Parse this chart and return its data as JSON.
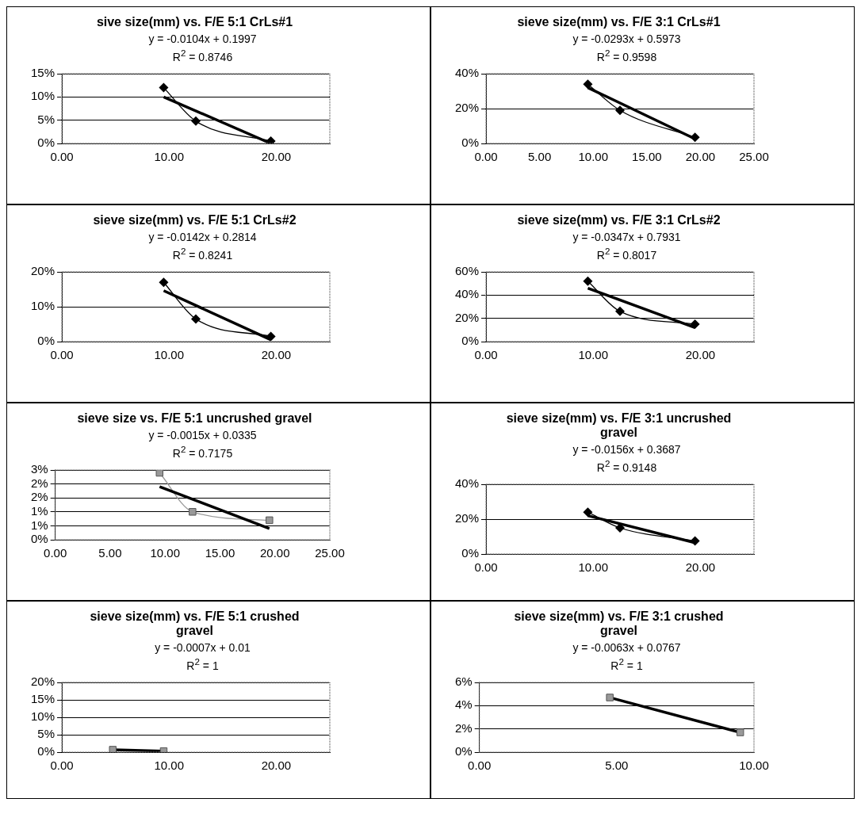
{
  "chart_data": [
    {
      "type": "line",
      "title": "sive size(mm)  vs. F/E 5:1 CrLs#1",
      "annotations": [
        "y = -0.0104x + 0.1997",
        "R$^{2}$ = 0.8746"
      ],
      "xlim": [
        0,
        25
      ],
      "xticks": [
        {
          "value": 0,
          "label": "0.00"
        },
        {
          "value": 10,
          "label": "10.00"
        },
        {
          "value": 20,
          "label": "20.00"
        }
      ],
      "ylim": [
        0,
        0.15
      ],
      "yticks": [
        {
          "value": 0,
          "label": "0%"
        },
        {
          "value": 0.05,
          "label": "5%"
        },
        {
          "value": 0.1,
          "label": "10%"
        },
        {
          "value": 0.15,
          "label": "15%"
        }
      ],
      "grid": "y",
      "legend": false,
      "series": [
        {
          "type": "line",
          "marker": "diamond",
          "color": "#000000",
          "x": [
            9.5,
            12.5,
            19.5
          ],
          "values": [
            0.12,
            0.048,
            0.005
          ]
        },
        {
          "type": "line",
          "marker": "none",
          "color": "#000000",
          "x": [
            9.5,
            19.5
          ],
          "values": [
            0.1,
            0.0
          ]
        }
      ]
    },
    {
      "type": "line",
      "title": "sieve size(mm)  vs. F/E 3:1 CrLs#1",
      "annotations": [
        "y = -0.0293x + 0.5973",
        "R$^{2}$ = 0.9598"
      ],
      "xlim": [
        0,
        25
      ],
      "xticks": [
        {
          "value": 0,
          "label": "0.00"
        },
        {
          "value": 5,
          "label": "5.00"
        },
        {
          "value": 10,
          "label": "10.00"
        },
        {
          "value": 15,
          "label": "15.00"
        },
        {
          "value": 20,
          "label": "20.00"
        },
        {
          "value": 25,
          "label": "25.00"
        }
      ],
      "ylim": [
        0,
        0.4
      ],
      "yticks": [
        {
          "value": 0,
          "label": "0%"
        },
        {
          "value": 0.2,
          "label": "20%"
        },
        {
          "value": 0.4,
          "label": "40%"
        }
      ],
      "grid": "y",
      "legend": false,
      "series": [
        {
          "type": "line",
          "marker": "diamond",
          "color": "#000000",
          "x": [
            9.5,
            12.5,
            19.5
          ],
          "values": [
            0.34,
            0.19,
            0.035
          ]
        },
        {
          "type": "line",
          "marker": "none",
          "color": "#000000",
          "x": [
            9.5,
            19.5
          ],
          "values": [
            0.32,
            0.026
          ]
        }
      ]
    },
    {
      "type": "line",
      "title": "sieve size(mm)  vs. F/E 5:1 CrLs#2",
      "annotations": [
        "y = -0.0142x + 0.2814",
        "R$^{2}$ = 0.8241"
      ],
      "xlim": [
        0,
        25
      ],
      "xticks": [
        {
          "value": 0,
          "label": "0.00"
        },
        {
          "value": 10,
          "label": "10.00"
        },
        {
          "value": 20,
          "label": "20.00"
        }
      ],
      "ylim": [
        0,
        0.2
      ],
      "yticks": [
        {
          "value": 0,
          "label": "0%"
        },
        {
          "value": 0.1,
          "label": "10%"
        },
        {
          "value": 0.2,
          "label": "20%"
        }
      ],
      "grid": "y",
      "legend": false,
      "series": [
        {
          "type": "line",
          "marker": "diamond",
          "color": "#000000",
          "x": [
            9.5,
            12.5,
            19.5
          ],
          "values": [
            0.17,
            0.065,
            0.015
          ]
        },
        {
          "type": "line",
          "marker": "none",
          "color": "#000000",
          "x": [
            9.5,
            19.5
          ],
          "values": [
            0.146,
            0.005
          ]
        }
      ]
    },
    {
      "type": "line",
      "title": "sieve size(mm) vs. F/E 3:1 CrLs#2",
      "annotations": [
        "y = -0.0347x + 0.7931",
        "R$^{2}$ = 0.8017"
      ],
      "xlim": [
        0,
        25
      ],
      "xticks": [
        {
          "value": 0,
          "label": "0.00"
        },
        {
          "value": 10,
          "label": "10.00"
        },
        {
          "value": 20,
          "label": "20.00"
        }
      ],
      "ylim": [
        0,
        0.6
      ],
      "yticks": [
        {
          "value": 0,
          "label": "0%"
        },
        {
          "value": 0.2,
          "label": "20%"
        },
        {
          "value": 0.4,
          "label": "40%"
        },
        {
          "value": 0.6,
          "label": "60%"
        }
      ],
      "grid": "y",
      "legend": false,
      "series": [
        {
          "type": "line",
          "marker": "diamond",
          "color": "#000000",
          "x": [
            9.5,
            12.5,
            19.5
          ],
          "values": [
            0.52,
            0.26,
            0.15
          ]
        },
        {
          "type": "line",
          "marker": "none",
          "color": "#000000",
          "x": [
            9.5,
            19.5
          ],
          "values": [
            0.46,
            0.12
          ]
        }
      ]
    },
    {
      "type": "line",
      "title": "sieve size vs. F/E 5:1 uncrushed gravel",
      "annotations": [
        "y = -0.0015x + 0.0335",
        "R$^{2}$ = 0.7175"
      ],
      "xlim": [
        0,
        25
      ],
      "xticks": [
        {
          "value": 0,
          "label": "0.00"
        },
        {
          "value": 5,
          "label": "5.00"
        },
        {
          "value": 10,
          "label": "10.00"
        },
        {
          "value": 15,
          "label": "15.00"
        },
        {
          "value": 20,
          "label": "20.00"
        },
        {
          "value": 25,
          "label": "25.00"
        }
      ],
      "ylim": [
        0,
        0.025
      ],
      "yticks": [
        {
          "value": 0,
          "label": "0%"
        },
        {
          "value": 0.005,
          "label": "1%"
        },
        {
          "value": 0.01,
          "label": "1%"
        },
        {
          "value": 0.015,
          "label": "2%"
        },
        {
          "value": 0.02,
          "label": "2%"
        },
        {
          "value": 0.025,
          "label": "3%"
        }
      ],
      "grid": "y",
      "legend": false,
      "series": [
        {
          "type": "line",
          "marker": "square",
          "color": "#999999",
          "x": [
            9.5,
            12.5,
            19.5
          ],
          "values": [
            0.024,
            0.01,
            0.007
          ]
        },
        {
          "type": "line",
          "marker": "none",
          "color": "#000000",
          "x": [
            9.5,
            19.5
          ],
          "values": [
            0.019,
            0.004
          ]
        }
      ]
    },
    {
      "type": "line",
      "title": "sieve size(mm)  vs. F/E 3:1 uncrushed gravel",
      "annotations": [
        "y = -0.0156x + 0.3687",
        "R$^{2}$ = 0.9148"
      ],
      "xlim": [
        0,
        25
      ],
      "xticks": [
        {
          "value": 0,
          "label": "0.00"
        },
        {
          "value": 10,
          "label": "10.00"
        },
        {
          "value": 20,
          "label": "20.00"
        }
      ],
      "ylim": [
        0,
        0.4
      ],
      "yticks": [
        {
          "value": 0,
          "label": "0%"
        },
        {
          "value": 0.2,
          "label": "20%"
        },
        {
          "value": 0.4,
          "label": "40%"
        }
      ],
      "grid": "y",
      "legend": false,
      "series": [
        {
          "type": "line",
          "marker": "diamond",
          "color": "#000000",
          "x": [
            9.5,
            12.5,
            19.5
          ],
          "values": [
            0.24,
            0.15,
            0.075
          ]
        },
        {
          "type": "line",
          "marker": "none",
          "color": "#000000",
          "x": [
            9.5,
            19.5
          ],
          "values": [
            0.22,
            0.065
          ]
        }
      ]
    },
    {
      "type": "line",
      "title": "sieve size(mm)  vs. F/E 5:1 crushed gravel",
      "annotations": [
        "y = -0.0007x + 0.01",
        "R$^{2}$ = 1"
      ],
      "xlim": [
        0,
        25
      ],
      "xticks": [
        {
          "value": 0,
          "label": "0.00"
        },
        {
          "value": 10,
          "label": "10.00"
        },
        {
          "value": 20,
          "label": "20.00"
        }
      ],
      "ylim": [
        0,
        0.2
      ],
      "yticks": [
        {
          "value": 0,
          "label": "0%"
        },
        {
          "value": 0.05,
          "label": "5%"
        },
        {
          "value": 0.1,
          "label": "10%"
        },
        {
          "value": 0.15,
          "label": "15%"
        },
        {
          "value": 0.2,
          "label": "20%"
        }
      ],
      "grid": "y",
      "legend": false,
      "series": [
        {
          "type": "scatter",
          "marker": "square",
          "color": "#999999",
          "x": [
            4.75,
            9.5
          ],
          "values": [
            0.007,
            0.003
          ]
        },
        {
          "marker": "none",
          "color": "#000000",
          "x": [
            4.75,
            9.5
          ],
          "values": [
            0.007,
            0.003
          ]
        }
      ]
    },
    {
      "type": "line",
      "title": "sieve size(mm)  vs. F/E 3:1 crushed gravel",
      "annotations": [
        "y = -0.0063x + 0.0767",
        "R$^{2}$ = 1"
      ],
      "xlim": [
        0,
        10
      ],
      "xticks": [
        {
          "value": 0,
          "label": "0.00"
        },
        {
          "value": 5,
          "label": "5.00"
        },
        {
          "value": 10,
          "label": "10.00"
        }
      ],
      "ylim": [
        0,
        0.06
      ],
      "yticks": [
        {
          "value": 0,
          "label": "0%"
        },
        {
          "value": 0.02,
          "label": "2%"
        },
        {
          "value": 0.04,
          "label": "4%"
        },
        {
          "value": 0.06,
          "label": "6%"
        }
      ],
      "grid": "y",
      "legend": false,
      "series": [
        {
          "type": "scatter",
          "marker": "square",
          "color": "#999999",
          "x": [
            4.75,
            9.5
          ],
          "values": [
            0.047,
            0.017
          ]
        },
        {
          "marker": "none",
          "color": "#000000",
          "x": [
            4.75,
            9.5
          ],
          "values": [
            0.047,
            0.017
          ]
        }
      ]
    }
  ]
}
